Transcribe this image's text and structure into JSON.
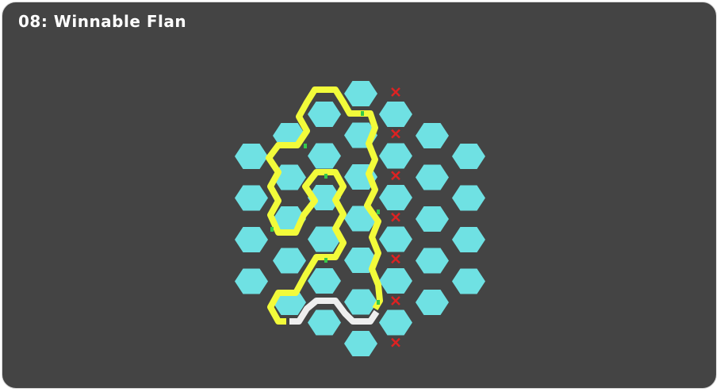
{
  "puzzle": {
    "title": "08: Winnable Flan"
  },
  "colors": {
    "panel": "#444444",
    "hex_fill": "#6fe1e3",
    "path_active": "#f2fb3a",
    "path_inactive": "#eeeeee",
    "segment_joint": "#35c94a",
    "marker": "#dd2222"
  },
  "board": {
    "columns": [
      {
        "count": 4
      },
      {
        "count": 5
      },
      {
        "count": 6
      },
      {
        "count": 7
      },
      {
        "count": 6
      },
      {
        "count": 5
      },
      {
        "count": 4
      }
    ],
    "x_markers": 7,
    "path_state": [
      "active",
      "inactive"
    ]
  }
}
